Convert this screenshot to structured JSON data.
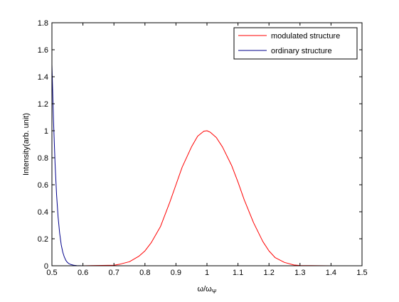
{
  "chart_data": {
    "type": "line",
    "title": "",
    "xlabel": "ω/ω",
    "xlabel_sub": "Ψ",
    "ylabel": "Intensity(arb. unit)",
    "xlim": [
      0.5,
      1.5
    ],
    "ylim": [
      0,
      1.8
    ],
    "xticks": [
      0.5,
      0.6,
      0.7,
      0.8,
      0.9,
      1,
      1.1,
      1.2,
      1.3,
      1.4,
      1.5
    ],
    "yticks": [
      0,
      0.2,
      0.4,
      0.6,
      0.8,
      1,
      1.2,
      1.4,
      1.6,
      1.8
    ],
    "xtick_labels": [
      "0.5",
      "0.6",
      "0.7",
      "0.8",
      "0.9",
      "1",
      "1.1",
      "1.2",
      "1.3",
      "1.4",
      "1.5"
    ],
    "ytick_labels": [
      "0",
      "0.2",
      "0.4",
      "0.6",
      "0.8",
      "1",
      "1.2",
      "1.4",
      "1.6",
      "1.8"
    ],
    "grid": false,
    "legend_position": "top-right",
    "series": [
      {
        "name": "modulated structure",
        "color": "#ff0000",
        "x": [
          0.5,
          0.6,
          0.7,
          0.72,
          0.75,
          0.78,
          0.8,
          0.82,
          0.85,
          0.88,
          0.9,
          0.92,
          0.95,
          0.97,
          0.99,
          1.0,
          1.01,
          1.03,
          1.05,
          1.08,
          1.1,
          1.12,
          1.15,
          1.18,
          1.2,
          1.22,
          1.25,
          1.28,
          1.3,
          1.4,
          1.5
        ],
        "y": [
          0,
          0,
          0.004,
          0.012,
          0.03,
          0.07,
          0.11,
          0.17,
          0.29,
          0.47,
          0.6,
          0.73,
          0.88,
          0.96,
          0.997,
          1.0,
          0.99,
          0.95,
          0.88,
          0.74,
          0.62,
          0.49,
          0.32,
          0.18,
          0.11,
          0.06,
          0.025,
          0.006,
          0.002,
          0,
          0
        ],
        "data_names": [
          "mod-point-1",
          "mod-point-2",
          "mod-point-3",
          "mod-point-4",
          "mod-point-5",
          "mod-point-6",
          "mod-point-7",
          "mod-point-8",
          "mod-point-9",
          "mod-point-10",
          "mod-point-11",
          "mod-point-12",
          "mod-point-13",
          "mod-point-14",
          "mod-point-15",
          "mod-point-16",
          "mod-point-17",
          "mod-point-18",
          "mod-point-19",
          "mod-point-20",
          "mod-point-21",
          "mod-point-22",
          "mod-point-23",
          "mod-point-24",
          "mod-point-25",
          "mod-point-26",
          "mod-point-27",
          "mod-point-28",
          "mod-point-29",
          "mod-point-30",
          "mod-point-31"
        ]
      },
      {
        "name": "ordinary structure",
        "color": "#00008b",
        "x": [
          0.5,
          0.505,
          0.51,
          0.515,
          0.52,
          0.525,
          0.53,
          0.535,
          0.54,
          0.545,
          0.55,
          0.555,
          0.56,
          0.57,
          0.58,
          0.6,
          0.7,
          0.8,
          0.9,
          1.0,
          1.1,
          1.2,
          1.3,
          1.4,
          1.5
        ],
        "y": [
          1.49,
          1.08,
          0.76,
          0.53,
          0.36,
          0.24,
          0.155,
          0.1,
          0.065,
          0.04,
          0.025,
          0.015,
          0.01,
          0.004,
          0.001,
          0,
          0,
          0,
          0,
          0,
          0,
          0,
          0,
          0,
          0
        ],
        "data_names": [
          "ord-point-1",
          "ord-point-2",
          "ord-point-3",
          "ord-point-4",
          "ord-point-5",
          "ord-point-6",
          "ord-point-7",
          "ord-point-8",
          "ord-point-9",
          "ord-point-10",
          "ord-point-11",
          "ord-point-12",
          "ord-point-13",
          "ord-point-14",
          "ord-point-15",
          "ord-point-16",
          "ord-point-17",
          "ord-point-18",
          "ord-point-19",
          "ord-point-20",
          "ord-point-21",
          "ord-point-22",
          "ord-point-23",
          "ord-point-24",
          "ord-point-25"
        ]
      }
    ]
  }
}
